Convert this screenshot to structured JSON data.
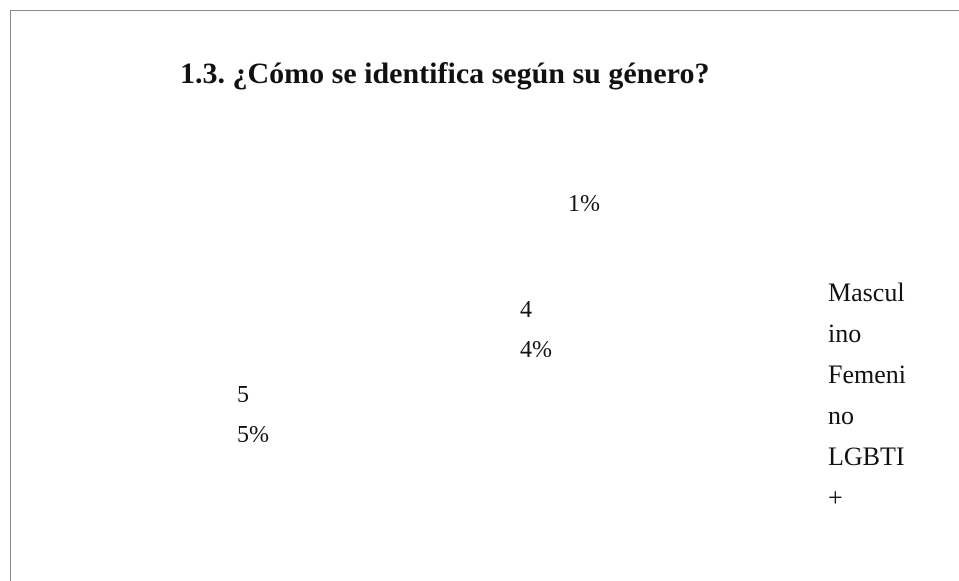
{
  "document": {
    "title": "1.3. ¿Cómo se identifica según su género?",
    "labels": [
      "1%",
      "44%",
      "55%"
    ],
    "legend": [
      "Masculino",
      "Femenino",
      "LGBTI+"
    ]
  }
}
